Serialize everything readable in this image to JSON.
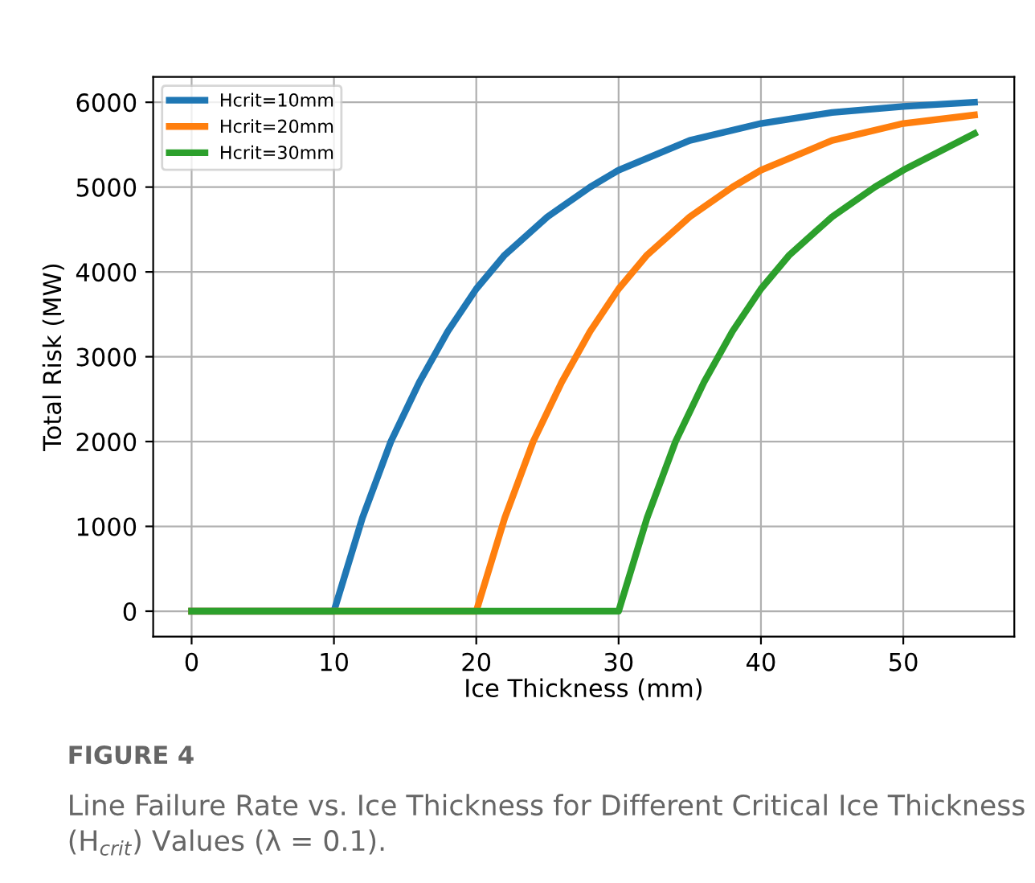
{
  "chart_data": {
    "type": "line",
    "xlabel": "Ice Thickness (mm)",
    "ylabel": "Total Risk (MW)",
    "xlim": [
      -2.7,
      57.8
    ],
    "ylim": [
      -300,
      6300
    ],
    "xticks": [
      0,
      10,
      20,
      30,
      40,
      50
    ],
    "yticks": [
      0,
      1000,
      2000,
      3000,
      4000,
      5000,
      6000
    ],
    "grid": true,
    "legend": "top left",
    "marker": "none",
    "line_style": "solid",
    "series": [
      {
        "name": "Hcrit=10mm",
        "color": "#1f77b4",
        "x": [
          0,
          10,
          12,
          14,
          16,
          18,
          20,
          22,
          25,
          28,
          30,
          35,
          40,
          45,
          50,
          55
        ],
        "values": [
          0,
          0,
          1100,
          2000,
          2700,
          3300,
          3800,
          4200,
          4650,
          5000,
          5200,
          5550,
          5750,
          5880,
          5950,
          6000
        ]
      },
      {
        "name": "Hcrit=20mm",
        "color": "#ff7f0e",
        "x": [
          0,
          20,
          22,
          24,
          26,
          28,
          30,
          32,
          35,
          38,
          40,
          45,
          50,
          55
        ],
        "values": [
          0,
          0,
          1100,
          2000,
          2700,
          3300,
          3800,
          4200,
          4650,
          5000,
          5200,
          5550,
          5750,
          5850
        ]
      },
      {
        "name": "Hcrit=30mm",
        "color": "#2ca02c",
        "x": [
          0,
          30,
          32,
          34,
          36,
          38,
          40,
          42,
          45,
          48,
          50,
          55
        ],
        "values": [
          0,
          0,
          1100,
          2000,
          2700,
          3300,
          3800,
          4200,
          4650,
          5000,
          5200,
          5630
        ]
      }
    ],
    "annotations": [
      "FIGURE 4",
      "Line Failure Rate vs. Ice Thickness for Different Critical Ice Thickness (H$_{crit}$) Values (λ = 0.1)."
    ]
  }
}
